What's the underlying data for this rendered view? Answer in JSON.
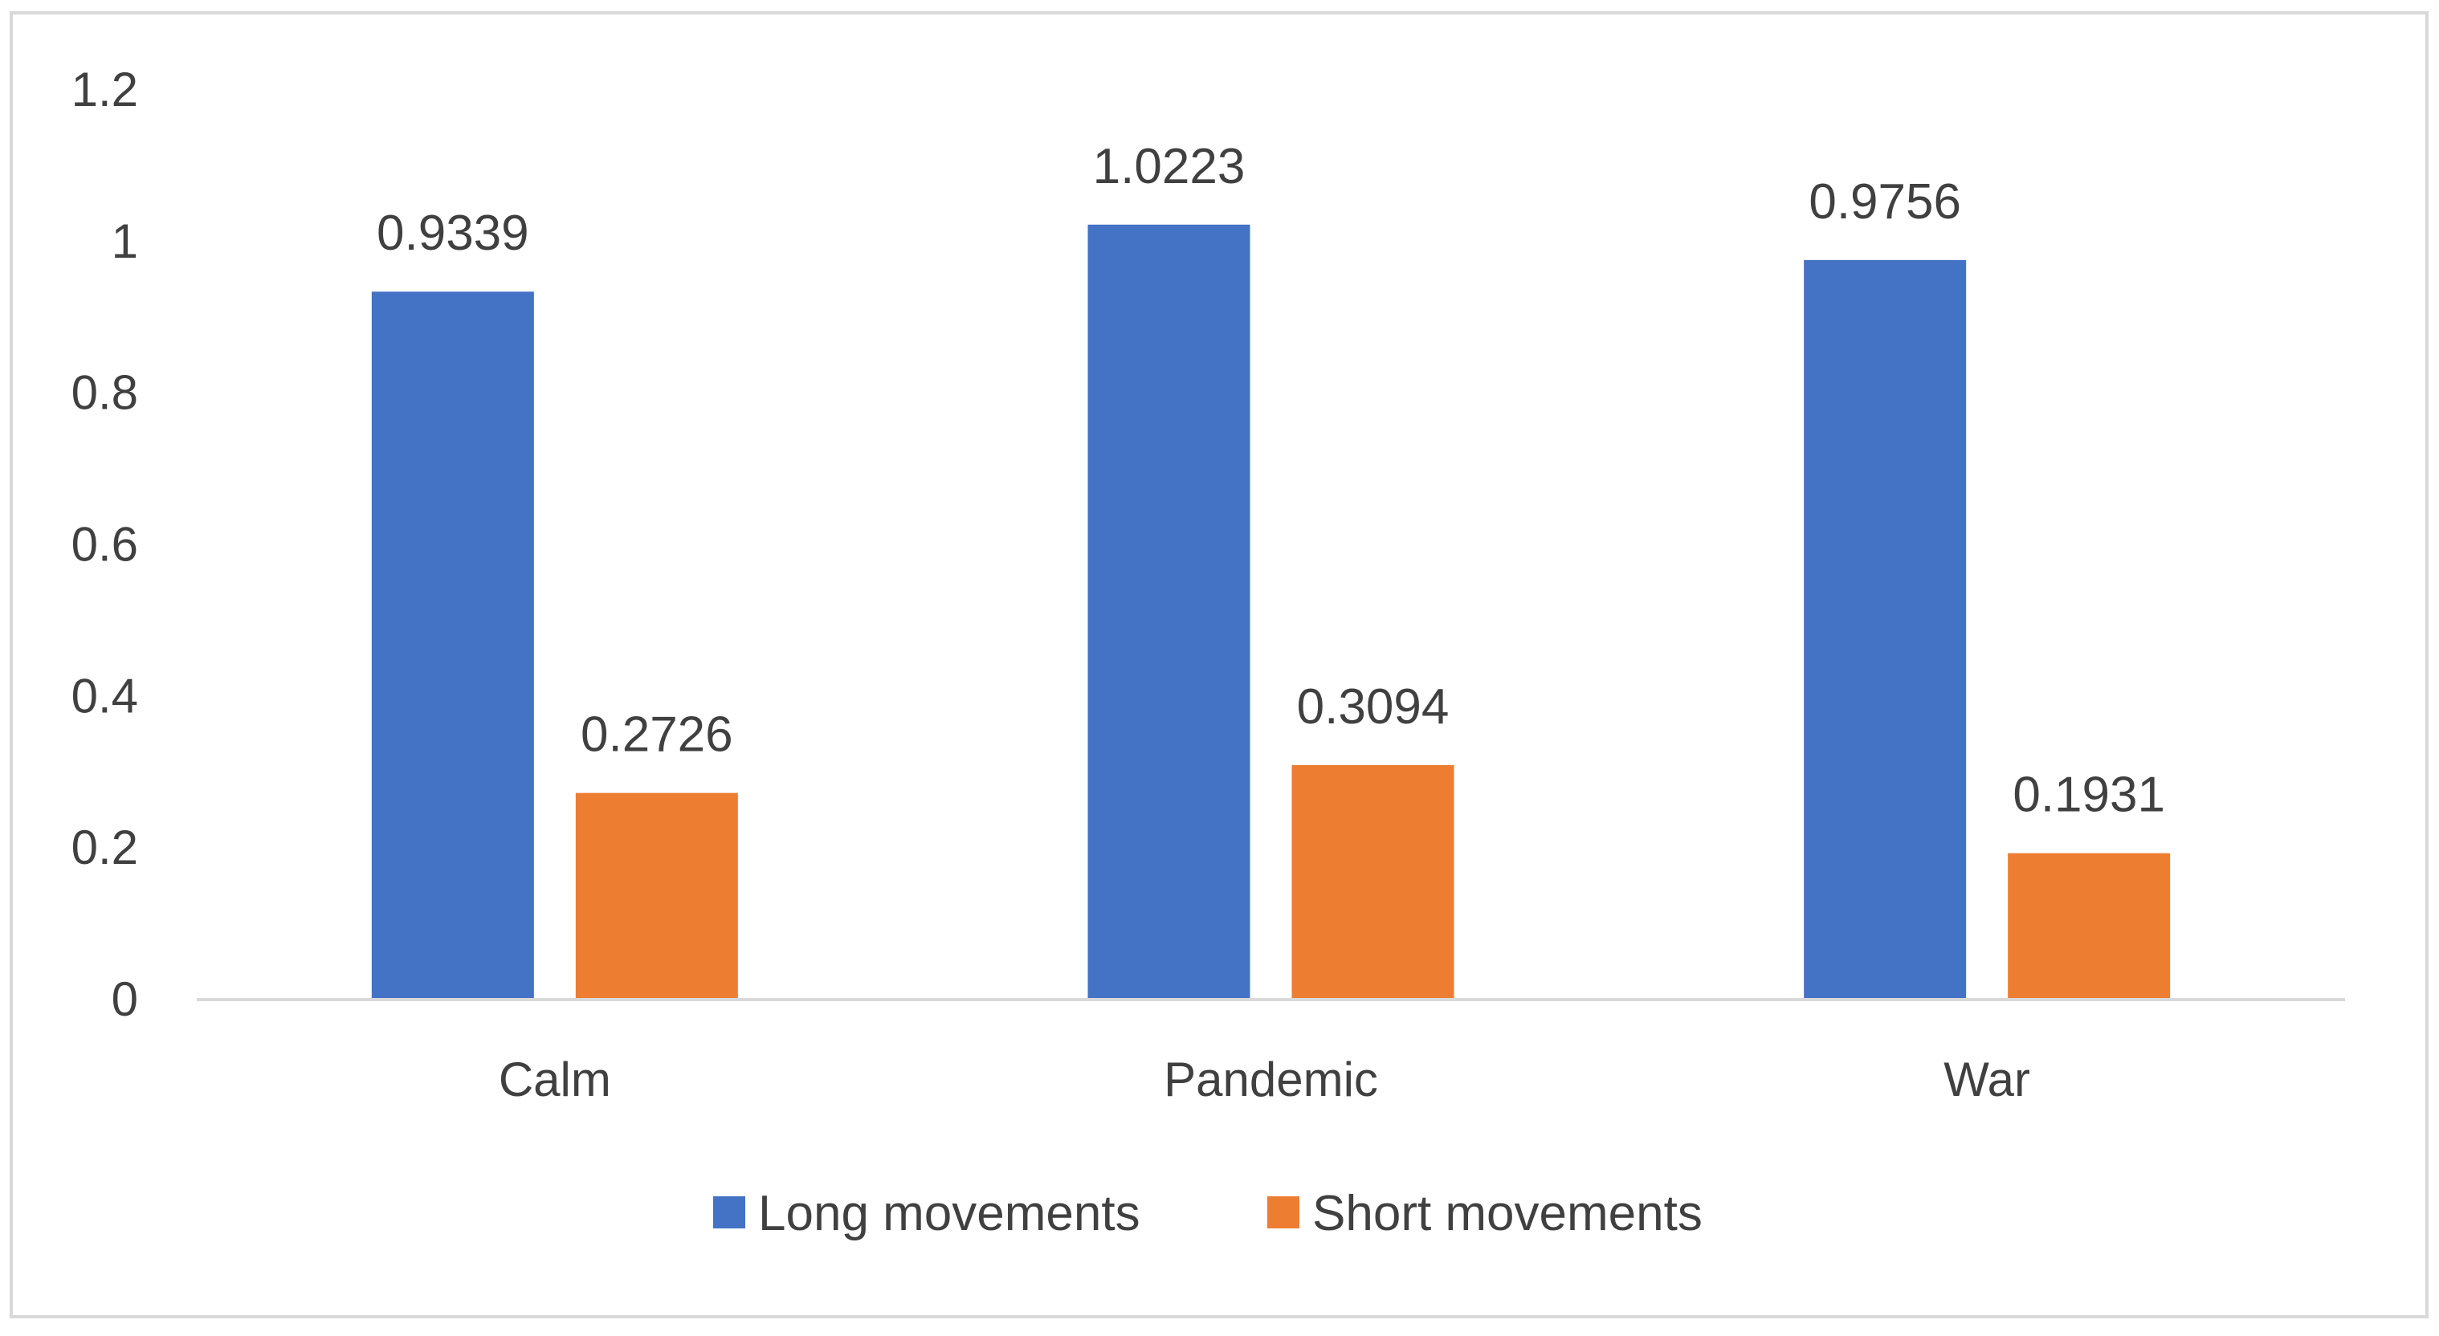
{
  "chart_data": {
    "type": "bar",
    "title": "",
    "xlabel": "",
    "ylabel": "",
    "categories": [
      "Calm",
      "Pandemic",
      "War"
    ],
    "series": [
      {
        "name": "Long movements",
        "color": "#4472C4",
        "values": [
          0.9339,
          1.0223,
          0.9756
        ],
        "labels": [
          "0.9339",
          "1.0223",
          "0.9756"
        ]
      },
      {
        "name": "Short movements",
        "color": "#ED7D31",
        "values": [
          0.2726,
          0.3094,
          0.1931
        ],
        "labels": [
          "0.2726",
          "0.3094",
          "0.1931"
        ]
      }
    ],
    "ylim": [
      0,
      1.2
    ],
    "yticks": [
      0,
      0.2,
      0.4,
      0.6,
      0.8,
      1,
      1.2
    ],
    "ytick_labels": [
      "0",
      "0.2",
      "0.4",
      "0.6",
      "0.8",
      "1",
      "1.2"
    ],
    "grid": false,
    "legend": "bottom-center",
    "axis_color": "#D9D9D9",
    "border_color": "#D9D9D9"
  }
}
